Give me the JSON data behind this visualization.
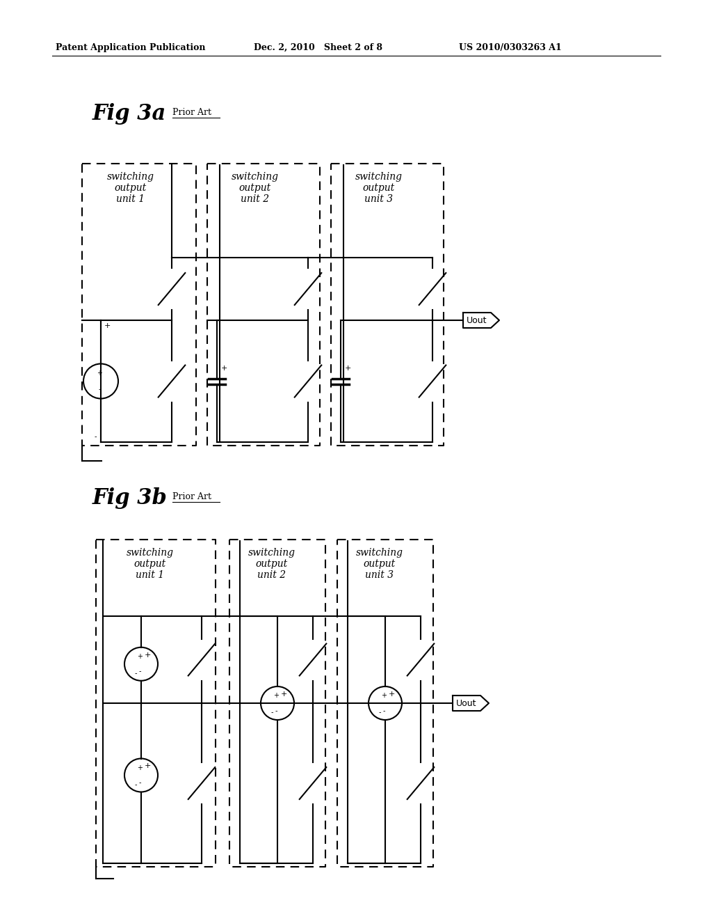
{
  "title_header_left": "Patent Application Publication",
  "title_header_center": "Dec. 2, 2010   Sheet 2 of 8",
  "title_header_right": "US 2010/0303263 A1",
  "fig3a_label": "Fig 3a",
  "fig3b_label": "Fig 3b",
  "prior_art": "Prior Art",
  "unit_labels": [
    "switching\noutput\nunit 1",
    "switching\noutput\nunit 2",
    "switching\noutput\nunit 3"
  ],
  "uout_label": "Uout",
  "background": "#ffffff",
  "line_color": "#000000"
}
